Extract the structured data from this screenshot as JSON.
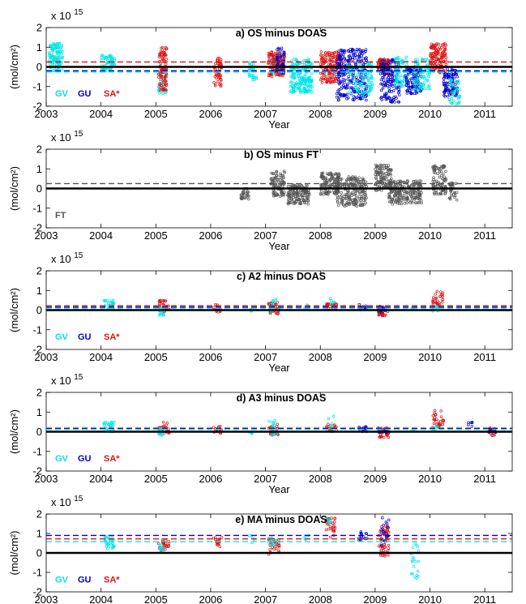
{
  "chart_data": [
    {
      "type": "scatter",
      "title": "a) OS minus DOAS",
      "xlabel": "Year",
      "ylabel": "(mol/cm²)",
      "yexp": "x 10",
      "yexp_power": "15",
      "xlim": [
        2003,
        2011.5
      ],
      "ylim": [
        -2,
        2
      ],
      "xticks": [
        2003,
        2004,
        2005,
        2006,
        2007,
        2008,
        2009,
        2010,
        2011
      ],
      "yticks": [
        -2,
        -1,
        0,
        1,
        2
      ],
      "legend": [
        {
          "name": "GV",
          "color": "#00e5e5"
        },
        {
          "name": "GU",
          "color": "#0000cc"
        },
        {
          "name": "SA*",
          "color": "#dd1111"
        }
      ],
      "mean_lines": [
        {
          "series": "SA*",
          "value": 0.25,
          "color": "#dd1111"
        },
        {
          "series": "GU",
          "value": -0.2,
          "color": "#0000cc"
        },
        {
          "series": "GV",
          "value": -0.26,
          "color": "#00e5e5"
        }
      ],
      "clusters": [
        {
          "series": "GV",
          "color": "#00e5e5",
          "x0": 2003.05,
          "x1": 2003.3,
          "lo": -0.2,
          "hi": 1.2,
          "n": 120
        },
        {
          "series": "GV",
          "color": "#00e5e5",
          "x0": 2004.0,
          "x1": 2004.25,
          "lo": -0.2,
          "hi": 0.6,
          "n": 60
        },
        {
          "series": "GV",
          "color": "#00e5e5",
          "x0": 2005.05,
          "x1": 2005.2,
          "lo": -1.4,
          "hi": 0.0,
          "n": 30
        },
        {
          "series": "SA*",
          "color": "#dd1111",
          "x0": 2005.05,
          "x1": 2005.2,
          "lo": -1.2,
          "hi": 1.0,
          "n": 90
        },
        {
          "series": "SA*",
          "color": "#dd1111",
          "x0": 2006.05,
          "x1": 2006.2,
          "lo": -1.0,
          "hi": 0.5,
          "n": 50
        },
        {
          "series": "GV",
          "color": "#00e5e5",
          "x0": 2006.7,
          "x1": 2006.85,
          "lo": -0.7,
          "hi": 0.3,
          "n": 30
        },
        {
          "series": "GV",
          "color": "#00e5e5",
          "x0": 2007.1,
          "x1": 2007.35,
          "lo": -0.4,
          "hi": 0.6,
          "n": 60
        },
        {
          "series": "SA*",
          "color": "#dd1111",
          "x0": 2007.05,
          "x1": 2007.35,
          "lo": -0.5,
          "hi": 0.8,
          "n": 120
        },
        {
          "series": "GU",
          "color": "#0000cc",
          "x0": 2007.2,
          "x1": 2007.35,
          "lo": -0.3,
          "hi": 1.0,
          "n": 40
        },
        {
          "series": "GV",
          "color": "#00e5e5",
          "x0": 2007.45,
          "x1": 2007.85,
          "lo": -1.3,
          "hi": 0.4,
          "n": 200
        },
        {
          "series": "SA*",
          "color": "#dd1111",
          "x0": 2008.0,
          "x1": 2008.35,
          "lo": -0.8,
          "hi": 0.8,
          "n": 150
        },
        {
          "series": "GU",
          "color": "#0000cc",
          "x0": 2008.3,
          "x1": 2008.85,
          "lo": -1.7,
          "hi": 0.9,
          "n": 260
        },
        {
          "series": "GV",
          "color": "#00e5e5",
          "x0": 2008.5,
          "x1": 2008.95,
          "lo": -1.5,
          "hi": 0.3,
          "n": 90
        },
        {
          "series": "SA*",
          "color": "#dd1111",
          "x0": 2009.05,
          "x1": 2009.25,
          "lo": -0.4,
          "hi": 0.4,
          "n": 90
        },
        {
          "series": "GU",
          "color": "#0000cc",
          "x0": 2009.1,
          "x1": 2009.45,
          "lo": -1.8,
          "hi": 0.4,
          "n": 140
        },
        {
          "series": "GV",
          "color": "#00e5e5",
          "x0": 2009.35,
          "x1": 2009.6,
          "lo": -1.0,
          "hi": 0.5,
          "n": 70
        },
        {
          "series": "GU",
          "color": "#0000cc",
          "x0": 2009.55,
          "x1": 2009.85,
          "lo": -1.4,
          "hi": 0.0,
          "n": 100
        },
        {
          "series": "GV",
          "color": "#00e5e5",
          "x0": 2009.7,
          "x1": 2010.0,
          "lo": -1.2,
          "hi": 0.4,
          "n": 80
        },
        {
          "series": "SA*",
          "color": "#dd1111",
          "x0": 2010.0,
          "x1": 2010.3,
          "lo": -0.3,
          "hi": 1.2,
          "n": 130
        },
        {
          "series": "GU",
          "color": "#0000cc",
          "x0": 2010.25,
          "x1": 2010.5,
          "lo": -1.5,
          "hi": -0.1,
          "n": 100
        },
        {
          "series": "GV",
          "color": "#00e5e5",
          "x0": 2010.35,
          "x1": 2010.55,
          "lo": -1.9,
          "hi": -0.6,
          "n": 40
        }
      ]
    },
    {
      "type": "scatter",
      "title": "b) OS minus FT",
      "xlabel": "Year",
      "ylabel": "(mol/cm²)",
      "yexp": "x 10",
      "yexp_power": "15",
      "xlim": [
        2003,
        2011.5
      ],
      "ylim": [
        -2,
        2
      ],
      "xticks": [
        2003,
        2004,
        2005,
        2006,
        2007,
        2008,
        2009,
        2010,
        2011
      ],
      "yticks": [
        -2,
        -1,
        0,
        1,
        2
      ],
      "legend": [
        {
          "name": "FT",
          "color": "#555555"
        }
      ],
      "mean_lines": [
        {
          "series": "FT",
          "value": 0.25,
          "color": "#555555"
        }
      ],
      "clusters": [
        {
          "series": "FT",
          "color": "#555555",
          "x0": 2006.55,
          "x1": 2006.7,
          "lo": -0.6,
          "hi": 0.0,
          "n": 30
        },
        {
          "series": "FT",
          "color": "#555555",
          "x0": 2007.1,
          "x1": 2007.35,
          "lo": -0.4,
          "hi": 0.9,
          "n": 90
        },
        {
          "series": "FT",
          "color": "#555555",
          "x0": 2007.4,
          "x1": 2007.8,
          "lo": -0.8,
          "hi": 0.2,
          "n": 140
        },
        {
          "series": "FT",
          "color": "#555555",
          "x0": 2008.0,
          "x1": 2008.35,
          "lo": -0.3,
          "hi": 0.8,
          "n": 120
        },
        {
          "series": "FT",
          "color": "#555555",
          "x0": 2008.3,
          "x1": 2008.85,
          "lo": -0.9,
          "hi": 0.6,
          "n": 200
        },
        {
          "series": "FT",
          "color": "#555555",
          "x0": 2009.0,
          "x1": 2009.3,
          "lo": -0.1,
          "hi": 1.2,
          "n": 120
        },
        {
          "series": "FT",
          "color": "#555555",
          "x0": 2009.25,
          "x1": 2009.85,
          "lo": -0.8,
          "hi": 0.4,
          "n": 200
        },
        {
          "series": "FT",
          "color": "#555555",
          "x0": 2010.05,
          "x1": 2010.3,
          "lo": -0.3,
          "hi": 1.2,
          "n": 90
        },
        {
          "series": "FT",
          "color": "#555555",
          "x0": 2010.35,
          "x1": 2010.5,
          "lo": -0.6,
          "hi": 0.3,
          "n": 30
        }
      ]
    },
    {
      "type": "scatter",
      "title": "c) A2 minus DOAS",
      "xlabel": "Year",
      "ylabel": "(mol/cm²)",
      "yexp": "x 10",
      "yexp_power": "15",
      "xlim": [
        2003,
        2011.5
      ],
      "ylim": [
        -2,
        2
      ],
      "xticks": [
        2003,
        2004,
        2005,
        2006,
        2007,
        2008,
        2009,
        2010,
        2011
      ],
      "yticks": [
        -2,
        -1,
        0,
        1,
        2
      ],
      "legend": [
        {
          "name": "GV",
          "color": "#00e5e5"
        },
        {
          "name": "GU",
          "color": "#0000cc"
        },
        {
          "name": "SA*",
          "color": "#dd1111"
        }
      ],
      "mean_lines": [
        {
          "series": "SA*",
          "value": 0.22,
          "color": "#dd1111"
        },
        {
          "series": "GU",
          "value": 0.15,
          "color": "#0000cc"
        },
        {
          "series": "GV",
          "value": 0.1,
          "color": "#00e5e5"
        }
      ],
      "clusters": [
        {
          "series": "GV",
          "color": "#00e5e5",
          "x0": 2004.05,
          "x1": 2004.25,
          "lo": 0.0,
          "hi": 0.5,
          "n": 30
        },
        {
          "series": "SA*",
          "color": "#dd1111",
          "x0": 2005.05,
          "x1": 2005.25,
          "lo": -0.1,
          "hi": 0.5,
          "n": 30
        },
        {
          "series": "GV",
          "color": "#00e5e5",
          "x0": 2005.05,
          "x1": 2005.15,
          "lo": -0.3,
          "hi": 0.2,
          "n": 12
        },
        {
          "series": "SA*",
          "color": "#dd1111",
          "x0": 2006.05,
          "x1": 2006.2,
          "lo": -0.1,
          "hi": 0.3,
          "n": 15
        },
        {
          "series": "GV",
          "color": "#00e5e5",
          "x0": 2006.7,
          "x1": 2006.8,
          "lo": -0.1,
          "hi": 0.1,
          "n": 5
        },
        {
          "series": "SA*",
          "color": "#dd1111",
          "x0": 2007.05,
          "x1": 2007.25,
          "lo": -0.2,
          "hi": 0.4,
          "n": 30
        },
        {
          "series": "GV",
          "color": "#00e5e5",
          "x0": 2007.05,
          "x1": 2007.2,
          "lo": -0.3,
          "hi": 0.6,
          "n": 15
        },
        {
          "series": "GV",
          "color": "#00e5e5",
          "x0": 2007.7,
          "x1": 2007.8,
          "lo": 0.0,
          "hi": 0.3,
          "n": 6
        },
        {
          "series": "SA*",
          "color": "#dd1111",
          "x0": 2008.1,
          "x1": 2008.3,
          "lo": 0.0,
          "hi": 0.4,
          "n": 25
        },
        {
          "series": "GV",
          "color": "#00e5e5",
          "x0": 2008.15,
          "x1": 2008.25,
          "lo": 0.1,
          "hi": 0.6,
          "n": 6
        },
        {
          "series": "GU",
          "color": "#0000cc",
          "x0": 2008.7,
          "x1": 2008.85,
          "lo": 0.0,
          "hi": 0.3,
          "n": 15
        },
        {
          "series": "SA*",
          "color": "#dd1111",
          "x0": 2009.05,
          "x1": 2009.25,
          "lo": -0.3,
          "hi": 0.2,
          "n": 30
        },
        {
          "series": "GU",
          "color": "#0000cc",
          "x0": 2009.05,
          "x1": 2009.2,
          "lo": -0.1,
          "hi": 0.2,
          "n": 10
        },
        {
          "series": "GV",
          "color": "#00e5e5",
          "x0": 2009.65,
          "x1": 2009.75,
          "lo": 0.0,
          "hi": 0.2,
          "n": 6
        },
        {
          "series": "SA*",
          "color": "#dd1111",
          "x0": 2010.05,
          "x1": 2010.25,
          "lo": 0.2,
          "hi": 1.1,
          "n": 30
        },
        {
          "series": "GV",
          "color": "#00e5e5",
          "x0": 2010.05,
          "x1": 2010.15,
          "lo": -0.1,
          "hi": 0.3,
          "n": 8
        }
      ]
    },
    {
      "type": "scatter",
      "title": "d) A3 minus DOAS",
      "xlabel": "Year",
      "ylabel": "(mol/cm²)",
      "yexp": "x 10",
      "yexp_power": "15",
      "xlim": [
        2003,
        2011.5
      ],
      "ylim": [
        -2,
        2
      ],
      "xticks": [
        2003,
        2004,
        2005,
        2006,
        2007,
        2008,
        2009,
        2010,
        2011
      ],
      "yticks": [
        -2,
        -1,
        0,
        1,
        2
      ],
      "legend": [
        {
          "name": "GV",
          "color": "#00e5e5"
        },
        {
          "name": "GU",
          "color": "#0000cc"
        },
        {
          "name": "SA*",
          "color": "#dd1111"
        }
      ],
      "mean_lines": [
        {
          "series": "SA*",
          "value": 0.18,
          "color": "#dd1111"
        },
        {
          "series": "GU",
          "value": 0.15,
          "color": "#0000cc"
        },
        {
          "series": "GV",
          "value": 0.12,
          "color": "#00e5e5"
        }
      ],
      "clusters": [
        {
          "series": "GV",
          "color": "#00e5e5",
          "x0": 2004.05,
          "x1": 2004.25,
          "lo": 0.0,
          "hi": 0.5,
          "n": 30
        },
        {
          "series": "SA*",
          "color": "#dd1111",
          "x0": 2005.05,
          "x1": 2005.25,
          "lo": -0.1,
          "hi": 0.5,
          "n": 30
        },
        {
          "series": "GV",
          "color": "#00e5e5",
          "x0": 2005.05,
          "x1": 2005.15,
          "lo": -0.2,
          "hi": 0.2,
          "n": 12
        },
        {
          "series": "SA*",
          "color": "#dd1111",
          "x0": 2006.05,
          "x1": 2006.2,
          "lo": -0.1,
          "hi": 0.3,
          "n": 15
        },
        {
          "series": "GV",
          "color": "#00e5e5",
          "x0": 2006.7,
          "x1": 2006.8,
          "lo": -0.1,
          "hi": 0.1,
          "n": 5
        },
        {
          "series": "SA*",
          "color": "#dd1111",
          "x0": 2007.05,
          "x1": 2007.25,
          "lo": -0.2,
          "hi": 0.4,
          "n": 30
        },
        {
          "series": "GV",
          "color": "#00e5e5",
          "x0": 2007.05,
          "x1": 2007.2,
          "lo": -0.2,
          "hi": 0.6,
          "n": 15
        },
        {
          "series": "SA*",
          "color": "#dd1111",
          "x0": 2008.1,
          "x1": 2008.3,
          "lo": 0.0,
          "hi": 0.4,
          "n": 20
        },
        {
          "series": "GV",
          "color": "#00e5e5",
          "x0": 2008.15,
          "x1": 2008.25,
          "lo": 0.1,
          "hi": 0.8,
          "n": 6
        },
        {
          "series": "GU",
          "color": "#0000cc",
          "x0": 2008.7,
          "x1": 2008.85,
          "lo": 0.0,
          "hi": 0.3,
          "n": 15
        },
        {
          "series": "SA*",
          "color": "#dd1111",
          "x0": 2009.05,
          "x1": 2009.25,
          "lo": -0.3,
          "hi": 0.2,
          "n": 30
        },
        {
          "series": "GU",
          "color": "#0000cc",
          "x0": 2009.05,
          "x1": 2009.2,
          "lo": -0.1,
          "hi": 0.2,
          "n": 10
        },
        {
          "series": "GV",
          "color": "#00e5e5",
          "x0": 2009.65,
          "x1": 2009.75,
          "lo": 0.0,
          "hi": 0.2,
          "n": 6
        },
        {
          "series": "SA*",
          "color": "#dd1111",
          "x0": 2010.05,
          "x1": 2010.25,
          "lo": 0.2,
          "hi": 1.1,
          "n": 30
        },
        {
          "series": "GV",
          "color": "#00e5e5",
          "x0": 2010.05,
          "x1": 2010.15,
          "lo": 0.0,
          "hi": 0.4,
          "n": 8
        },
        {
          "series": "GU",
          "color": "#0000cc",
          "x0": 2010.7,
          "x1": 2010.8,
          "lo": 0.2,
          "hi": 0.5,
          "n": 6
        },
        {
          "series": "SA*",
          "color": "#dd1111",
          "x0": 2011.05,
          "x1": 2011.2,
          "lo": -0.2,
          "hi": 0.2,
          "n": 20
        },
        {
          "series": "GU",
          "color": "#0000cc",
          "x0": 2011.05,
          "x1": 2011.2,
          "lo": -0.1,
          "hi": 0.2,
          "n": 8
        }
      ]
    },
    {
      "type": "scatter",
      "title": "e) MA minus DOAS",
      "xlabel": "Year",
      "ylabel": "(mol/cm²)",
      "yexp": "x 10",
      "yexp_power": "15",
      "xlim": [
        2003,
        2011.5
      ],
      "ylim": [
        -2,
        2
      ],
      "xticks": [
        2003,
        2004,
        2005,
        2006,
        2007,
        2008,
        2009,
        2010,
        2011
      ],
      "yticks": [
        -2,
        -1,
        0,
        1,
        2
      ],
      "legend": [
        {
          "name": "GV",
          "color": "#00e5e5"
        },
        {
          "name": "GU",
          "color": "#0000cc"
        },
        {
          "name": "SA*",
          "color": "#dd1111"
        }
      ],
      "mean_lines": [
        {
          "series": "GU",
          "value": 0.9,
          "color": "#0000cc"
        },
        {
          "series": "SA*",
          "value": 0.72,
          "color": "#dd1111"
        },
        {
          "series": "GV",
          "value": 0.58,
          "color": "#00e5e5"
        }
      ],
      "clusters": [
        {
          "series": "GV",
          "color": "#00e5e5",
          "x0": 2004.05,
          "x1": 2004.25,
          "lo": 0.2,
          "hi": 0.9,
          "n": 30
        },
        {
          "series": "SA*",
          "color": "#dd1111",
          "x0": 2005.05,
          "x1": 2005.25,
          "lo": 0.1,
          "hi": 0.7,
          "n": 25
        },
        {
          "series": "GV",
          "color": "#00e5e5",
          "x0": 2005.05,
          "x1": 2005.15,
          "lo": 0.0,
          "hi": 0.5,
          "n": 10
        },
        {
          "series": "SA*",
          "color": "#dd1111",
          "x0": 2006.05,
          "x1": 2006.2,
          "lo": 0.3,
          "hi": 0.8,
          "n": 15
        },
        {
          "series": "GV",
          "color": "#00e5e5",
          "x0": 2006.7,
          "x1": 2006.8,
          "lo": 0.5,
          "hi": 0.9,
          "n": 5
        },
        {
          "series": "SA*",
          "color": "#dd1111",
          "x0": 2007.05,
          "x1": 2007.25,
          "lo": -0.1,
          "hi": 0.8,
          "n": 30
        },
        {
          "series": "GV",
          "color": "#00e5e5",
          "x0": 2007.05,
          "x1": 2007.2,
          "lo": 0.3,
          "hi": 0.9,
          "n": 12
        },
        {
          "series": "GV",
          "color": "#00e5e5",
          "x0": 2007.7,
          "x1": 2007.8,
          "lo": 0.6,
          "hi": 1.0,
          "n": 5
        },
        {
          "series": "SA*",
          "color": "#dd1111",
          "x0": 2008.1,
          "x1": 2008.3,
          "lo": 0.8,
          "hi": 1.8,
          "n": 30
        },
        {
          "series": "GV",
          "color": "#00e5e5",
          "x0": 2008.1,
          "x1": 2008.2,
          "lo": 1.5,
          "hi": 1.8,
          "n": 6
        },
        {
          "series": "GU",
          "color": "#0000cc",
          "x0": 2008.7,
          "x1": 2008.85,
          "lo": 0.6,
          "hi": 1.1,
          "n": 15
        },
        {
          "series": "SA*",
          "color": "#dd1111",
          "x0": 2009.05,
          "x1": 2009.25,
          "lo": -0.2,
          "hi": 1.4,
          "n": 50
        },
        {
          "series": "GU",
          "color": "#0000cc",
          "x0": 2009.1,
          "x1": 2009.25,
          "lo": 0.3,
          "hi": 2.0,
          "n": 20
        },
        {
          "series": "GV",
          "color": "#00e5e5",
          "x0": 2009.65,
          "x1": 2009.8,
          "lo": -1.3,
          "hi": 0.5,
          "n": 20
        }
      ]
    }
  ]
}
